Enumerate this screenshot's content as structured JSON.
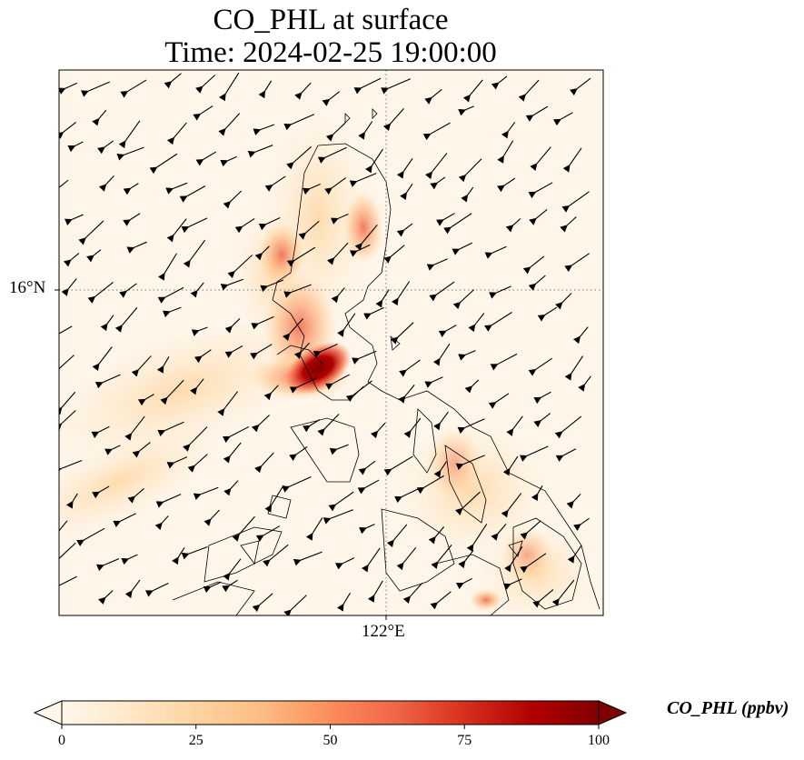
{
  "title": {
    "line1": "CO_PHL at surface",
    "line2": "Time: 2024-02-25 19:00:00"
  },
  "map": {
    "lat_gridline_label": "16°N",
    "lon_gridline_label": "122°E",
    "field_colormap": "OrRd",
    "vector_field": "surface wind arrows",
    "gridline_style": "dotted"
  },
  "colorbar": {
    "label": "CO_PHL (ppbv)",
    "min": 0,
    "max": 100,
    "ticks": [
      "0",
      "25",
      "50",
      "75",
      "100"
    ],
    "extend": "both",
    "colors": [
      "#fff7ec",
      "#fee8c8",
      "#fdd49e",
      "#fdbb84",
      "#fc8d59",
      "#ef6548",
      "#d7301f",
      "#b30000",
      "#7f0000"
    ]
  }
}
